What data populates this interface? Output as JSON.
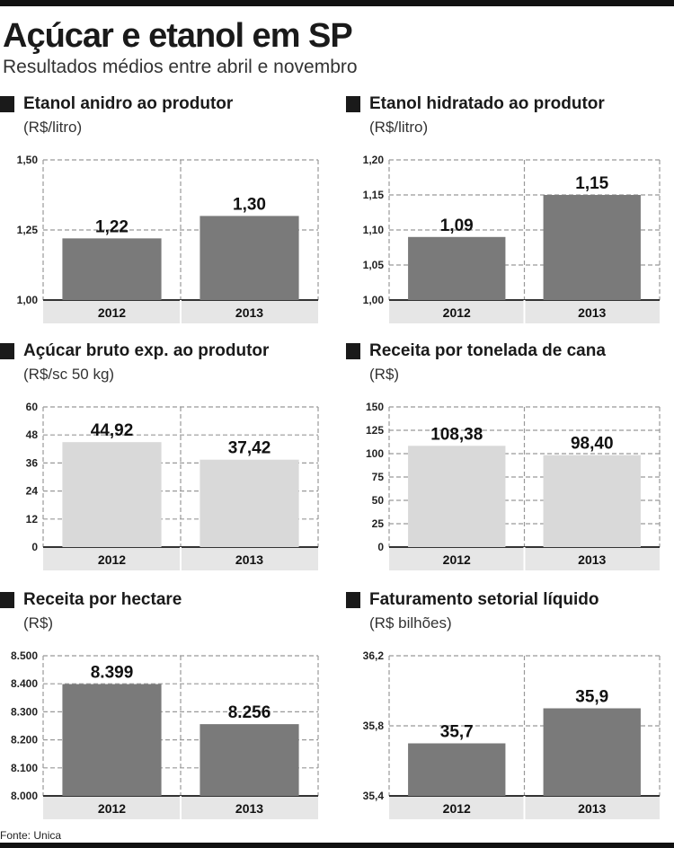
{
  "header": {
    "title": "Açúcar e etanol em SP",
    "subtitle": "Resultados médios entre abril e novembro"
  },
  "source": "Fonte: Unica",
  "colors": {
    "dark_bar": "#7a7a7a",
    "light_bar": "#d9d9d9",
    "grid": "#999999",
    "axis_band": "#e6e6e6"
  },
  "chart_data": [
    {
      "type": "bar",
      "title": "Etanol anidro ao produtor",
      "unit": "(R$/litro)",
      "categories": [
        "2012",
        "2013"
      ],
      "values": [
        1.22,
        1.3
      ],
      "value_labels": [
        "1,22",
        "1,30"
      ],
      "ylim": [
        1.0,
        1.5
      ],
      "yticks": [
        1.0,
        1.25,
        1.5
      ],
      "ytick_labels": [
        "1,00",
        "1,25",
        "1,50"
      ],
      "bar_color": "#7a7a7a"
    },
    {
      "type": "bar",
      "title": "Etanol hidratado ao produtor",
      "unit": "(R$/litro)",
      "categories": [
        "2012",
        "2013"
      ],
      "values": [
        1.09,
        1.15
      ],
      "value_labels": [
        "1,09",
        "1,15"
      ],
      "ylim": [
        1.0,
        1.2
      ],
      "yticks": [
        1.0,
        1.05,
        1.1,
        1.15,
        1.2
      ],
      "ytick_labels": [
        "1,00",
        "1,05",
        "1,10",
        "1,15",
        "1,20"
      ],
      "bar_color": "#7a7a7a"
    },
    {
      "type": "bar",
      "title": "Açúcar bruto exp. ao produtor",
      "unit": "(R$/sc 50 kg)",
      "categories": [
        "2012",
        "2013"
      ],
      "values": [
        44.92,
        37.42
      ],
      "value_labels": [
        "44,92",
        "37,42"
      ],
      "ylim": [
        0,
        60
      ],
      "yticks": [
        0,
        12,
        24,
        36,
        48,
        60
      ],
      "ytick_labels": [
        "0",
        "12",
        "24",
        "36",
        "48",
        "60"
      ],
      "bar_color": "#d9d9d9"
    },
    {
      "type": "bar",
      "title": "Receita por tonelada de cana",
      "unit": "(R$)",
      "categories": [
        "2012",
        "2013"
      ],
      "values": [
        108.38,
        98.4
      ],
      "value_labels": [
        "108,38",
        "98,40"
      ],
      "ylim": [
        0,
        150
      ],
      "yticks": [
        0,
        25,
        50,
        75,
        100,
        125,
        150
      ],
      "ytick_labels": [
        "0",
        "25",
        "50",
        "75",
        "100",
        "125",
        "150"
      ],
      "bar_color": "#d9d9d9"
    },
    {
      "type": "bar",
      "title": "Receita por hectare",
      "unit": "(R$)",
      "categories": [
        "2012",
        "2013"
      ],
      "values": [
        8399,
        8256
      ],
      "value_labels": [
        "8.399",
        "8.256"
      ],
      "ylim": [
        8000,
        8500
      ],
      "yticks": [
        8000,
        8100,
        8200,
        8300,
        8400,
        8500
      ],
      "ytick_labels": [
        "8.000",
        "8.100",
        "8.200",
        "8.300",
        "8.400",
        "8.500"
      ],
      "bar_color": "#7a7a7a"
    },
    {
      "type": "bar",
      "title": "Faturamento setorial líquido",
      "unit": "(R$ bilhões)",
      "categories": [
        "2012",
        "2013"
      ],
      "values": [
        35.7,
        35.9
      ],
      "value_labels": [
        "35,7",
        "35,9"
      ],
      "ylim": [
        35.4,
        36.2
      ],
      "yticks": [
        35.4,
        35.8,
        36.2
      ],
      "ytick_labels": [
        "35,4",
        "35,8",
        "36,2"
      ],
      "bar_color": "#7a7a7a"
    }
  ]
}
